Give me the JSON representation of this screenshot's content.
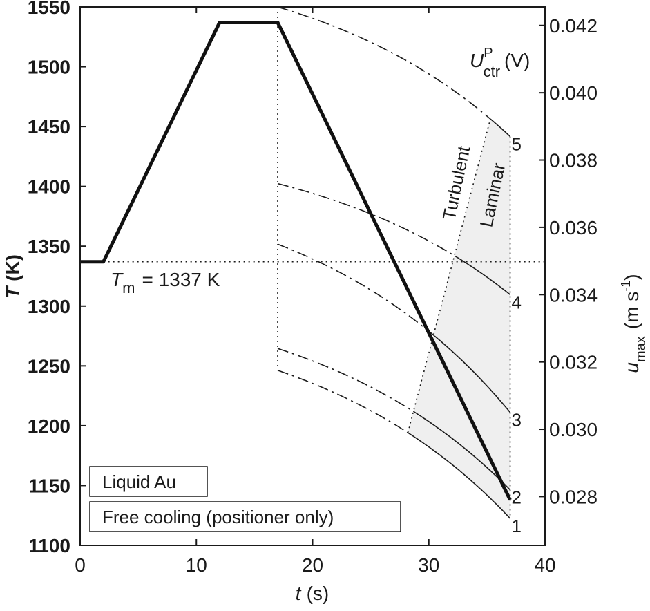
{
  "chart_data": {
    "type": "line",
    "xlabel": {
      "symbol": "t",
      "unit": "(s)"
    },
    "ylabel": {
      "symbol": "T",
      "unit": "(K)"
    },
    "y2label": {
      "main": "u",
      "sub": "max",
      "unit_open": "(m s",
      "unit_sup": "-1",
      "unit_close": ")"
    },
    "xlim": [
      0,
      40
    ],
    "ylim": [
      1100,
      1550
    ],
    "y2lim": [
      0.02655,
      0.04255
    ],
    "x_ticks": [
      0,
      10,
      20,
      30,
      40
    ],
    "x_tick_labels": [
      "0",
      "10",
      "20",
      "30",
      "40"
    ],
    "y_ticks": [
      1100,
      1150,
      1200,
      1250,
      1300,
      1350,
      1400,
      1450,
      1500,
      1550
    ],
    "y_tick_labels": [
      "1100",
      "1150",
      "1200",
      "1250",
      "1300",
      "1350",
      "1400",
      "1450",
      "1500",
      "1550"
    ],
    "y2_ticks": [
      0.028,
      0.03,
      0.032,
      0.034,
      0.036,
      0.038,
      0.04,
      0.042
    ],
    "y2_tick_labels": [
      "0.028",
      "0.030",
      "0.032",
      "0.034",
      "0.036",
      "0.038",
      "0.040",
      "0.042"
    ],
    "temperature_series": {
      "x": [
        0,
        2,
        12,
        17,
        37
      ],
      "y": [
        1337,
        1337,
        1537,
        1537,
        1138
      ]
    },
    "melting_line": {
      "value": 1337,
      "label_symbol": "T",
      "label_sub": "m",
      "label_value": "= 1337 K"
    },
    "cooling_start_time": 17,
    "cooling_end_time": 37,
    "voltage_header": {
      "symbol": "U",
      "sup": "P",
      "sub": "ctr",
      "unit": "(V)"
    },
    "velocity_curves": [
      {
        "label": "1",
        "t_start": 17,
        "u_start": 0.03175,
        "u_end": 0.02735,
        "transition_t": 28.2
      },
      {
        "label": "2",
        "t_start": 17,
        "u_start": 0.0324,
        "u_end": 0.0282,
        "transition_t": 29.3
      },
      {
        "label": "3",
        "t_start": 17,
        "u_start": 0.0355,
        "u_end": 0.0305,
        "transition_t": 30.5
      },
      {
        "label": "4",
        "t_start": 17,
        "u_start": 0.0373,
        "u_end": 0.034,
        "transition_t": 32.5
      },
      {
        "label": "5",
        "t_start": 17,
        "u_start": 0.04255,
        "u_end": 0.0387,
        "transition_t": 35.3
      }
    ],
    "transition_boundary": {
      "x": [
        28.2,
        35.3
      ],
      "u": [
        0.03,
        0.0392
      ]
    },
    "regime_labels": {
      "turbulent": "Turbulent",
      "laminar": "Laminar"
    },
    "legend": [
      "Liquid Au",
      "Free cooling (positioner only)"
    ],
    "grid": false
  }
}
